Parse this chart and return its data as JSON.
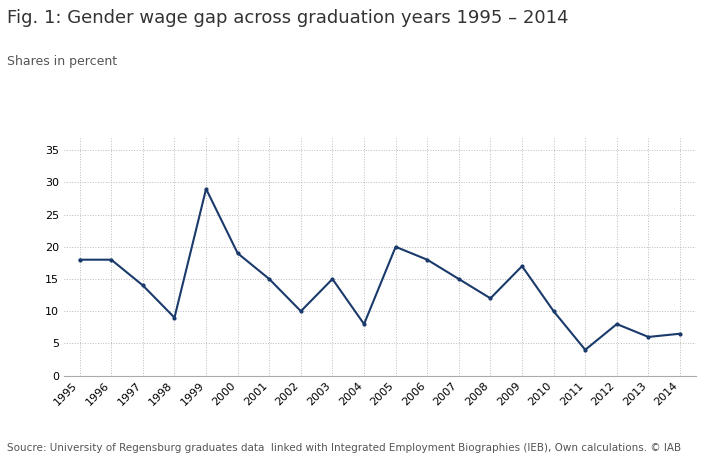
{
  "title": "Fig. 1: Gender wage gap across graduation years 1995 – 2014",
  "subtitle": "Shares in percent",
  "footnote": "Soucre: University of Regensburg graduates data  linked with Integrated Employment Biographies (IEB), Own calculations. © IAB",
  "years": [
    1995,
    1996,
    1997,
    1998,
    1999,
    2000,
    2001,
    2002,
    2003,
    2004,
    2005,
    2006,
    2007,
    2008,
    2009,
    2010,
    2011,
    2012,
    2013,
    2014
  ],
  "values": [
    18.0,
    18.0,
    14.0,
    9.0,
    29.0,
    19.0,
    15.0,
    10.0,
    15.0,
    8.0,
    20.0,
    18.0,
    15.0,
    12.0,
    17.0,
    10.0,
    4.0,
    8.0,
    6.0,
    6.5
  ],
  "line_color": "#1a3a6b",
  "background_color": "#ffffff",
  "ylim": [
    0,
    37
  ],
  "yticks": [
    0,
    5,
    10,
    15,
    20,
    25,
    30,
    35
  ],
  "grid_color": "#bbbbbb",
  "title_fontsize": 13,
  "subtitle_fontsize": 9,
  "footnote_fontsize": 7.5,
  "tick_fontsize": 8
}
